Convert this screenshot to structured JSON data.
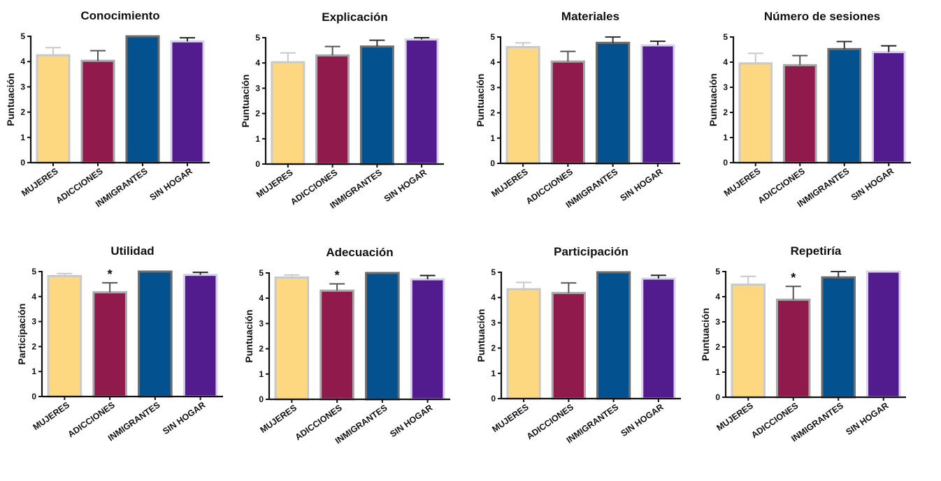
{
  "colors": {
    "MUJERES": {
      "fill": "#FED880",
      "stroke": "#C9C9C9",
      "error": "#C9C9C9"
    },
    "ADICCIONES": {
      "fill": "#8F1A4B",
      "stroke": "#A8A8A8",
      "error": "#555555"
    },
    "INMIGRANTES": {
      "fill": "#03528F",
      "stroke": "#6E6E6E",
      "error": "#333333"
    },
    "SIN HOGAR": {
      "fill": "#531C8E",
      "stroke": "#D9D2EC",
      "error": "#222222"
    }
  },
  "chart_data": [
    {
      "type": "bar",
      "title": "Conocimiento",
      "ylabel": "Puntuación",
      "xlabel": "",
      "categories": [
        "MUJERES",
        "ADICCIONES",
        "INMIGRANTES",
        "SIN HOGAR"
      ],
      "values": [
        4.25,
        4.03,
        5.0,
        4.8
      ],
      "errors": [
        0.3,
        0.4,
        0.0,
        0.14
      ],
      "significance": [
        "",
        "",
        "",
        ""
      ],
      "ylim": [
        0,
        5
      ],
      "yticks": [
        "0",
        "1",
        "2",
        "3",
        "4",
        "5"
      ],
      "grid": false
    },
    {
      "type": "bar",
      "title": "Explicación",
      "ylabel": "Puntuación",
      "xlabel": "",
      "categories": [
        "MUJERES",
        "ADICCIONES",
        "INMIGRANTES",
        "SIN HOGAR"
      ],
      "values": [
        4.03,
        4.3,
        4.65,
        4.93
      ],
      "errors": [
        0.37,
        0.35,
        0.25,
        0.07
      ],
      "significance": [
        "",
        "",
        "",
        ""
      ],
      "ylim": [
        0,
        5
      ],
      "yticks": [
        "0",
        "1",
        "2",
        "3",
        "4",
        "5"
      ],
      "grid": false
    },
    {
      "type": "bar",
      "title": "Materiales",
      "ylabel": "Puntuación",
      "xlabel": "",
      "categories": [
        "MUJERES",
        "ADICCIONES",
        "INMIGRANTES",
        "SIN HOGAR"
      ],
      "values": [
        4.6,
        4.03,
        4.77,
        4.67
      ],
      "errors": [
        0.17,
        0.4,
        0.23,
        0.16
      ],
      "significance": [
        "",
        "",
        "",
        ""
      ],
      "ylim": [
        0,
        5
      ],
      "yticks": [
        "0",
        "1",
        "2",
        "3",
        "4",
        "5"
      ],
      "grid": false
    },
    {
      "type": "bar",
      "title": "Número de sesiones",
      "ylabel": "Puntuación",
      "xlabel": "",
      "categories": [
        "MUJERES",
        "ADICCIONES",
        "INMIGRANTES",
        "SIN HOGAR"
      ],
      "values": [
        3.95,
        3.88,
        4.52,
        4.4
      ],
      "errors": [
        0.4,
        0.38,
        0.3,
        0.25
      ],
      "significance": [
        "",
        "",
        "",
        ""
      ],
      "ylim": [
        0,
        5
      ],
      "yticks": [
        "0",
        "1",
        "2",
        "3",
        "4",
        "5"
      ],
      "grid": false
    },
    {
      "type": "bar",
      "title": "Utilidad",
      "ylabel": "Participación",
      "xlabel": "",
      "categories": [
        "MUJERES",
        "ADICCIONES",
        "INMIGRANTES",
        "SIN HOGAR"
      ],
      "values": [
        4.82,
        4.17,
        5.0,
        4.87
      ],
      "errors": [
        0.1,
        0.38,
        0.0,
        0.1
      ],
      "significance": [
        "",
        "*",
        "",
        ""
      ],
      "ylim": [
        0,
        5
      ],
      "yticks": [
        "0",
        "1",
        "2",
        "3",
        "4",
        "5"
      ],
      "grid": false
    },
    {
      "type": "bar",
      "title": "Adecuación",
      "ylabel": "Puntuación",
      "xlabel": "",
      "categories": [
        "MUJERES",
        "ADICCIONES",
        "INMIGRANTES",
        "SIN HOGAR"
      ],
      "values": [
        4.82,
        4.3,
        5.0,
        4.75
      ],
      "errors": [
        0.1,
        0.27,
        0.0,
        0.15
      ],
      "significance": [
        "",
        "*",
        "",
        ""
      ],
      "ylim": [
        0,
        5
      ],
      "yticks": [
        "0",
        "1",
        "2",
        "3",
        "4",
        "5"
      ],
      "grid": false
    },
    {
      "type": "bar",
      "title": "Participación",
      "ylabel": "Puntuación",
      "xlabel": "",
      "categories": [
        "MUJERES",
        "ADICCIONES",
        "INMIGRANTES",
        "SIN HOGAR"
      ],
      "values": [
        4.33,
        4.18,
        5.0,
        4.75
      ],
      "errors": [
        0.27,
        0.4,
        0.0,
        0.13
      ],
      "significance": [
        "",
        "",
        "",
        ""
      ],
      "ylim": [
        0,
        5
      ],
      "yticks": [
        "0",
        "1",
        "2",
        "3",
        "4",
        "5"
      ],
      "grid": false
    },
    {
      "type": "bar",
      "title": "Repetiría",
      "ylabel": "Puntuación",
      "xlabel": "",
      "categories": [
        "MUJERES",
        "ADICCIONES",
        "INMIGRANTES",
        "SIN HOGAR"
      ],
      "values": [
        4.48,
        3.88,
        4.77,
        5.0
      ],
      "errors": [
        0.33,
        0.53,
        0.23,
        0.0
      ],
      "significance": [
        "",
        "*",
        "",
        ""
      ],
      "ylim": [
        0,
        5
      ],
      "yticks": [
        "0",
        "1",
        "2",
        "3",
        "4",
        "5"
      ],
      "grid": false
    }
  ]
}
